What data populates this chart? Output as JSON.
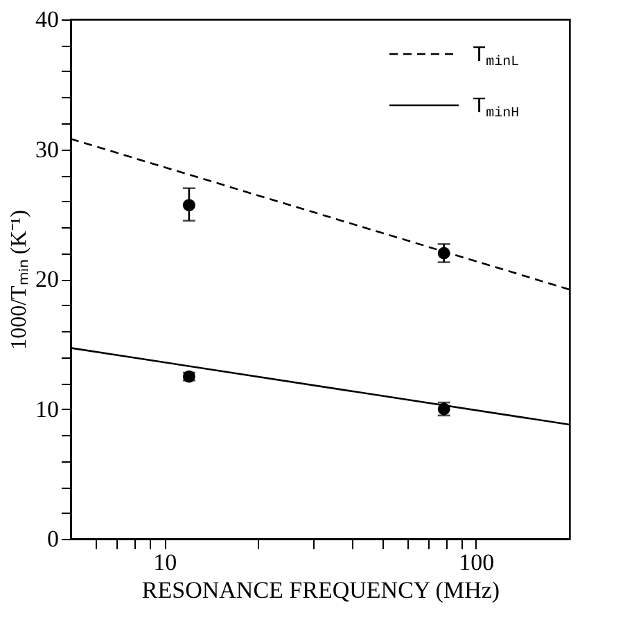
{
  "chart_data": {
    "type": "line",
    "xlabel": "RESONANCE FREQUENCY (MHz)",
    "ylabel": "1000/Tₘᵢₙ (K⁻¹)",
    "log": "x",
    "xlim": [
      5,
      200
    ],
    "xticks": [
      {
        "value": 6,
        "label": null
      },
      {
        "value": 7,
        "label": null
      },
      {
        "value": 8,
        "label": null
      },
      {
        "value": 9,
        "label": null
      },
      10,
      {
        "value": 20,
        "label": null
      },
      {
        "value": 30,
        "label": null
      },
      {
        "value": 40,
        "label": null
      },
      {
        "value": 50,
        "label": null
      },
      {
        "value": 60,
        "label": null
      },
      {
        "value": 70,
        "label": null
      },
      {
        "value": 80,
        "label": null
      },
      {
        "value": 90,
        "label": null
      },
      100
    ],
    "ylim": [
      0,
      40
    ],
    "yticks": [
      0,
      {
        "value": 2,
        "label": null
      },
      {
        "value": 4,
        "label": null
      },
      {
        "value": 6,
        "label": null
      },
      {
        "value": 8,
        "label": null
      },
      10,
      {
        "value": 12,
        "label": null
      },
      {
        "value": 14,
        "label": null
      },
      {
        "value": 16,
        "label": null
      },
      {
        "value": 18,
        "label": null
      },
      20,
      {
        "value": 22,
        "label": null
      },
      {
        "value": 24,
        "label": null
      },
      {
        "value": 26,
        "label": null
      },
      {
        "value": 28,
        "label": null
      },
      30,
      {
        "value": 32,
        "label": null
      },
      {
        "value": 34,
        "label": null
      },
      {
        "value": 36,
        "label": null
      },
      {
        "value": 38,
        "label": null
      },
      40
    ],
    "grid": false,
    "legend": "top right",
    "series": [
      {
        "name": "T$_{minL}$",
        "line_style": "dashed",
        "color": "#000000",
        "x": [
          5,
          200
        ],
        "values": [
          30.8,
          19.2
        ]
      },
      {
        "name": "T$_{minH}$",
        "line_style": "solid",
        "color": "#000000",
        "x": [
          5,
          200
        ],
        "values": [
          14.7,
          8.8
        ]
      },
      {
        "type": "scatter",
        "marker": "circle",
        "color": "#000000",
        "x": [
          12,
          79
        ],
        "values": [
          25.7,
          22.0
        ],
        "errors": [
          [
            24.5,
            27.0
          ],
          [
            21.3,
            22.7
          ]
        ]
      },
      {
        "type": "scatter",
        "marker": "circle",
        "color": "#000000",
        "x": [
          12,
          79
        ],
        "values": [
          12.5,
          10.0
        ],
        "errors": [
          0.3,
          0.5
        ]
      }
    ]
  }
}
